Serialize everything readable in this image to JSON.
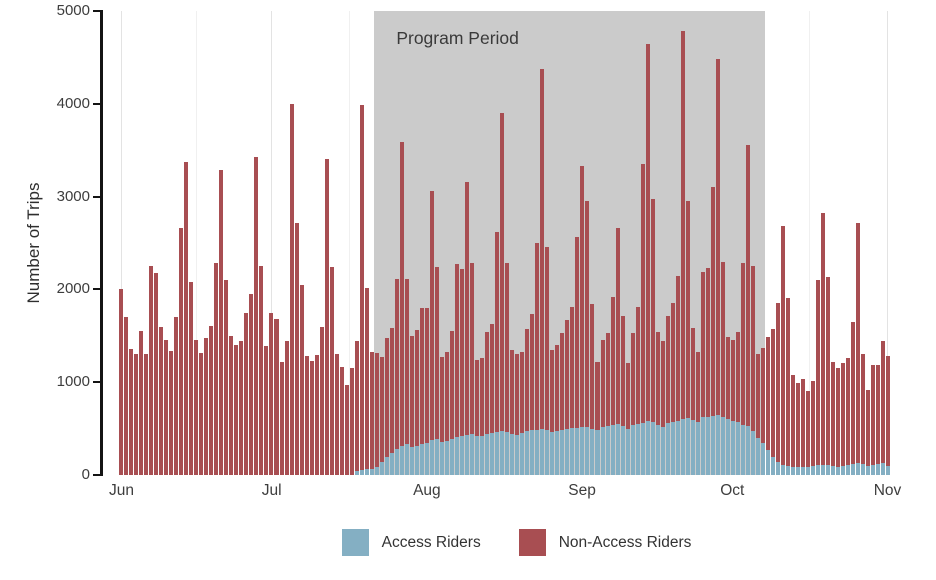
{
  "chart_data": {
    "type": "bar",
    "stacked": true,
    "title": "",
    "ylabel": "Number of Trips",
    "xlabel": "",
    "ylim": [
      0,
      5000
    ],
    "y_ticks": [
      0,
      1000,
      2000,
      3000,
      4000,
      5000
    ],
    "x_tick_labels": [
      "Jun",
      "Jul",
      "Aug",
      "Sep",
      "Oct",
      "Nov"
    ],
    "x_tick_bar_indices": [
      0,
      30,
      61,
      92,
      122,
      153
    ],
    "n_bars": 154,
    "bars_are": "daily trips, Jun 1 through Nov 1",
    "grid": {
      "vertical_major": true,
      "vertical_minor": true,
      "horizontal": false
    },
    "annotation": {
      "label": "Program Period",
      "start_bar_index": 51,
      "end_bar_index": 129,
      "fill": "#cbcbcb"
    },
    "legend": {
      "position": "bottom",
      "entries": [
        "Access Riders",
        "Non-Access Riders"
      ]
    },
    "series": [
      {
        "name": "Access Riders",
        "color": "#84afc3",
        "values": [
          0,
          0,
          0,
          0,
          0,
          0,
          0,
          0,
          0,
          0,
          0,
          0,
          0,
          0,
          0,
          0,
          0,
          0,
          0,
          0,
          0,
          0,
          0,
          0,
          0,
          0,
          0,
          0,
          0,
          0,
          0,
          0,
          0,
          0,
          0,
          0,
          0,
          0,
          0,
          0,
          0,
          0,
          0,
          0,
          0,
          0,
          0,
          40,
          55,
          65,
          70,
          90,
          140,
          190,
          240,
          280,
          310,
          330,
          300,
          310,
          330,
          350,
          380,
          390,
          360,
          370,
          390,
          410,
          420,
          430,
          440,
          420,
          420,
          440,
          450,
          460,
          470,
          460,
          440,
          430,
          450,
          470,
          480,
          490,
          500,
          490,
          460,
          470,
          490,
          500,
          510,
          510,
          520,
          520,
          500,
          490,
          520,
          530,
          540,
          550,
          530,
          500,
          540,
          550,
          560,
          580,
          570,
          540,
          520,
          560,
          570,
          580,
          600,
          610,
          590,
          570,
          620,
          630,
          640,
          650,
          630,
          600,
          580,
          575,
          540,
          530,
          470,
          400,
          345,
          270,
          195,
          140,
          110,
          100,
          90,
          85,
          90,
          85,
          95,
          105,
          110,
          105,
          95,
          90,
          100,
          105,
          115,
          130,
          120,
          100,
          110,
          120,
          130,
          100
        ]
      },
      {
        "name": "Non-Access Riders",
        "color": "#a84e52",
        "values": [
          2000,
          1700,
          1360,
          1300,
          1550,
          1300,
          2250,
          2180,
          1600,
          1450,
          1340,
          1700,
          2660,
          3370,
          2080,
          1450,
          1310,
          1480,
          1610,
          2280,
          3290,
          2100,
          1500,
          1400,
          1440,
          1750,
          1950,
          3430,
          2250,
          1390,
          1750,
          1680,
          1220,
          1440,
          4000,
          2720,
          2050,
          1280,
          1230,
          1290,
          1600,
          3400,
          2240,
          1300,
          1160,
          970,
          1150,
          1400,
          3935,
          1955,
          1260,
          1220,
          1130,
          1290,
          1340,
          1830,
          3280,
          1780,
          1200,
          1250,
          1470,
          1450,
          2680,
          1850,
          910,
          960,
          1160,
          1860,
          1800,
          2730,
          1850,
          820,
          840,
          1100,
          1180,
          2160,
          3430,
          1830,
          910,
          870,
          880,
          1100,
          1250,
          2010,
          3870,
          1970,
          890,
          930,
          1040,
          1170,
          1300,
          2050,
          2810,
          2430,
          1340,
          730,
          940,
          1000,
          1380,
          2115,
          1180,
          710,
          990,
          1260,
          2790,
          4060,
          2400,
          1005,
          920,
          1150,
          1280,
          1560,
          4180,
          2340,
          990,
          760,
          1570,
          1600,
          2460,
          3830,
          1670,
          890,
          870,
          965,
          1740,
          3030,
          1780,
          900,
          1025,
          1220,
          1375,
          1710,
          2570,
          1810,
          990,
          905,
          940,
          815,
          915,
          1995,
          2710,
          2025,
          1125,
          1060,
          1110,
          1155,
          1535,
          2590,
          1180,
          820,
          1080,
          1070,
          1310,
          1180
        ]
      }
    ]
  }
}
